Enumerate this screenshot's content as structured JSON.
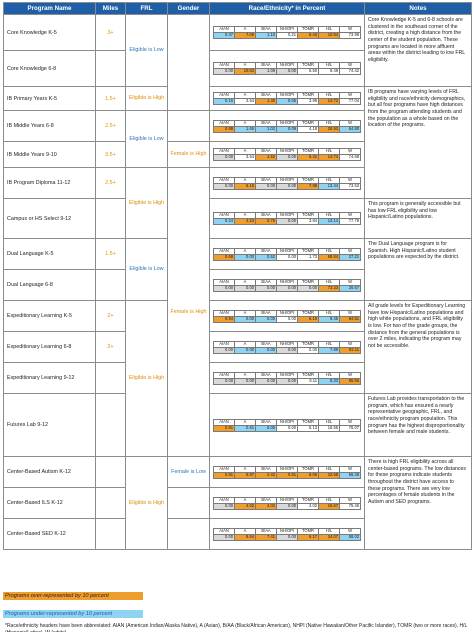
{
  "headers": {
    "program": "Program Name",
    "miles": "Miles",
    "frl": "FRL",
    "gender": "Gender",
    "race": "Race/Ethnicity* in Percent",
    "notes": "Notes"
  },
  "race_cols": [
    "AIAN",
    "A",
    "B/AA",
    "NH/OPI",
    "TOMR",
    "H/L",
    "W"
  ],
  "rows": [
    {
      "name": "Core Knowledge K-5",
      "miles": "3+",
      "values": [
        "0.37",
        "7.06",
        "1.10",
        "0.21",
        "6.43",
        "10.94",
        "73.98"
      ],
      "hl": [
        "b",
        "o",
        "b",
        "",
        "o",
        "o",
        ""
      ]
    },
    {
      "name": "Core Knowledge 6-8",
      "miles": "",
      "values": [
        "0.00",
        "10.53",
        "1.09",
        "0.00",
        "5.50",
        "8.49",
        "74.42"
      ],
      "hl": [
        "g",
        "o",
        "g",
        "g",
        "",
        "",
        ""
      ]
    },
    {
      "name": "IB Primary Years K-5",
      "miles": "1.5+",
      "values": [
        "0.16",
        "2.64",
        "1.40",
        "0.05",
        "3.99",
        "14.72",
        "77.04"
      ],
      "hl": [
        "b",
        "",
        "o",
        "b",
        "",
        "o",
        ""
      ]
    },
    {
      "name": "IB Middle Years 6-8",
      "miles": "2.5+",
      "values": [
        "0.89",
        "1.65",
        "1.02",
        "0.09",
        "4.18",
        "26.93",
        "64.80"
      ],
      "hl": [
        "o",
        "b",
        "b",
        "b",
        "",
        "o",
        "b"
      ]
    },
    {
      "name": "IB Middle Years 9-10",
      "miles": "3.5+",
      "values": [
        "0.00",
        "3.64",
        "1.52",
        "0.00",
        "5.42",
        "14.74",
        "74.68"
      ],
      "hl": [
        "g",
        "",
        "o",
        "g",
        "o",
        "o",
        ""
      ]
    },
    {
      "name": "IB Program Diploma 11-12",
      "miles": "2.5+",
      "values": [
        "0.00",
        "5.15",
        "0.00",
        "0.00",
        "7.88",
        "13.44",
        "73.53"
      ],
      "hl": [
        "g",
        "o",
        "g",
        "g",
        "o",
        "b",
        ""
      ]
    },
    {
      "name": "Campus or HS Select 9-12",
      "miles": "",
      "values": [
        "0.24",
        "4.23",
        "0.76",
        "0.00",
        "3.84",
        "13.14",
        "77.79"
      ],
      "hl": [
        "b",
        "o",
        "o",
        "g",
        "",
        "b",
        ""
      ]
    },
    {
      "name": "Dual Language K-5",
      "miles": "1.5+",
      "values": [
        "0.69",
        "0.00",
        "0.52",
        "0.00",
        "1.73",
        "69.84",
        "27.21"
      ],
      "hl": [
        "o",
        "b",
        "b",
        "",
        "",
        "o",
        "b"
      ]
    },
    {
      "name": "Dual Language 6-8",
      "miles": "",
      "values": [
        "0.00",
        "0.00",
        "0.00",
        "0.00",
        "0.00",
        "73.33",
        "26.67"
      ],
      "hl": [
        "g",
        "g",
        "g",
        "g",
        "g",
        "o",
        "b"
      ]
    },
    {
      "name": "Expeditionary Learning K-5",
      "miles": "2+",
      "values": [
        "0.94",
        "0.00",
        "0.00",
        "0.00",
        "6.10",
        "8.45",
        "84.51"
      ],
      "hl": [
        "o",
        "b",
        "b",
        "",
        "o",
        "b",
        "o"
      ]
    },
    {
      "name": "Expeditionary Learning 6-8",
      "miles": "2+",
      "values": [
        "0.00",
        "0.00",
        "0.00",
        "0.00",
        "0.00",
        "7.89",
        "92.11"
      ],
      "hl": [
        "g",
        "b",
        "b",
        "g",
        "",
        "b",
        "o"
      ]
    },
    {
      "name": "Expeditionary Learning 9-12",
      "miles": "",
      "values": [
        "0.00",
        "0.00",
        "0.00",
        "0.00",
        "6.11",
        "8.33",
        "85.56"
      ],
      "hl": [
        "g",
        "g",
        "g",
        "g",
        "",
        "b",
        "o"
      ]
    },
    {
      "name": "Futures Lab 9-12",
      "miles": "",
      "values": [
        "0.61",
        "0.61",
        "0.00",
        "0.00",
        "6.13",
        "16.56",
        "76.07"
      ],
      "hl": [
        "o",
        "b",
        "b",
        "",
        "",
        "",
        ""
      ]
    },
    {
      "name": "Center-Based Autism K-12",
      "miles": "",
      "values": [
        "0.81",
        "8.87",
        "2.42",
        "0.81",
        "8.06",
        "22.58",
        "56.45"
      ],
      "hl": [
        "o",
        "o",
        "o",
        "o",
        "o",
        "o",
        "b"
      ]
    },
    {
      "name": "Center-Based ILS K-12",
      "miles": "",
      "values": [
        "0.00",
        "4.02",
        "4.02",
        "0.00",
        "4.02",
        "16.67",
        "75.46"
      ],
      "hl": [
        "g",
        "o",
        "o",
        "g",
        "",
        "o",
        ""
      ]
    },
    {
      "name": "Center-Based SED K-12",
      "miles": "",
      "values": [
        "0.00",
        "8.64",
        "7.41",
        "0.00",
        "6.17",
        "24.07",
        "58.02"
      ],
      "hl": [
        "g",
        "o",
        "o",
        "g",
        "o",
        "o",
        "b"
      ]
    }
  ],
  "frl_groups": [
    {
      "text": "Eligible is Low",
      "color": "blue"
    },
    {
      "text": "Eligible is High",
      "color": "orange"
    },
    {
      "text": "Eligible is Low",
      "color": "blue"
    },
    {
      "text": "Eligible is High",
      "color": "orange"
    },
    {
      "text": "Eligible is Low",
      "color": "blue"
    },
    {
      "text": "Eligible is High",
      "color": "orange"
    },
    {
      "text": "Eligible is High",
      "color": "orange"
    }
  ],
  "gender_groups": [
    {
      "text": "Female is High",
      "color": "orange"
    },
    {
      "text": "Female is High",
      "color": "orange"
    },
    {
      "text": "Female is Low",
      "color": "blue"
    },
    {
      "text": "Female is Low",
      "color": "blue"
    }
  ],
  "notes": [
    "Core Knowledge K-5 and 6-8 schools are clustered in the southeast corner of the district, creating a high distance from the center of the student population. These programs are located in more affluent areas within the district leading to low FRL eligibility.",
    "IB programs have varying levels of FRL eligibility and race/ethnicity demographics, but all four programs have high distances from the program attending students and the population as a whole based on the location of the programs.",
    "This program is generally accessible but has low FRL eligibility and low Hispanic/Latino populations.",
    "The Dual Language program is for Spanish. High Hispanic/Latino student populations are expected by the district.",
    "All grade levels for Expeditionary Learning have low Hispanic/Latino populations and high white populations, and FRL eligibility is low. For two of the grade groups, the distance from the general populations is over 2 miles, indicating the program may not be accessible.",
    "Futures Lab provides transportation to the program, which has ensured a nearly representative geographic, FRL, and race/ethnicity program population. This program has the highest disproportionality between female and male students.",
    "There is high FRL eligibility across all center-based programs. The low distances for these programs indicate students throughout the district have access to these programs. There are very low percentages of female students in the Autism and SED programs."
  ],
  "legend": {
    "over": "Programs over-represented by 10 percent",
    "under": "Programs under-represented by 10 percent"
  },
  "footnote": "*Race/ethnicity headers have been abbreviated: AIAN (American Indian/Alaska Native), A (Asian), B/AA (Black/African American), NHPI (Native Hawaiian/Other Pacific Islander), TOMR (two or more races), H/L (Hispanic/Latino), W (white)",
  "colors": {
    "header": "#1f5fa8",
    "over": "#ef9d2d",
    "under": "#8fd3f3",
    "none": "#d9d9d9",
    "miles": "#e08e0b",
    "low": "#2e75b6"
  }
}
